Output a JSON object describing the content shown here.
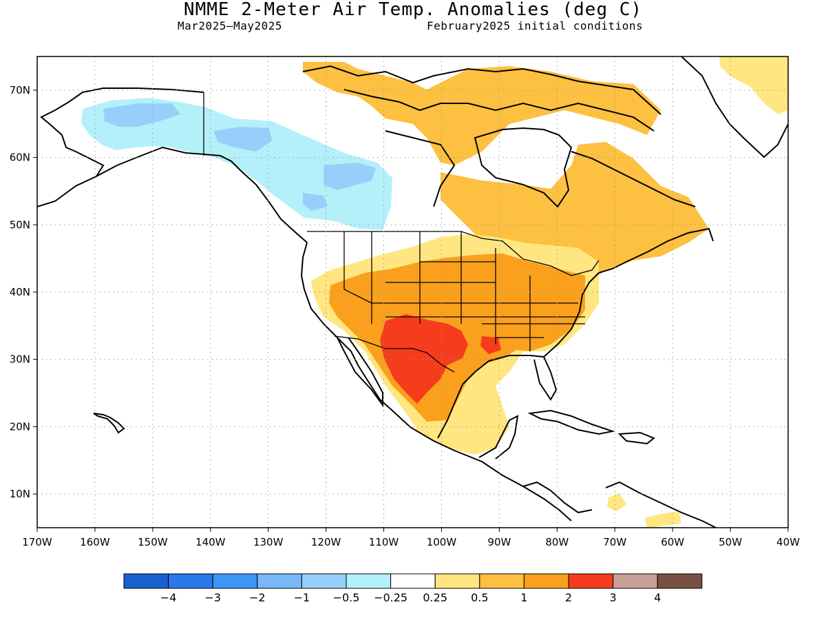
{
  "title": "NMME 2-Meter Air Temp. Anomalies (deg C)",
  "subtitle_left": "Mar2025–May2025",
  "subtitle_right": "February2025 initial conditions",
  "map": {
    "lon_range": [
      -170,
      -40
    ],
    "lat_range": [
      5,
      75
    ],
    "lon_ticks": [
      {
        "value": -170,
        "label": "170W"
      },
      {
        "value": -160,
        "label": "160W"
      },
      {
        "value": -150,
        "label": "150W"
      },
      {
        "value": -140,
        "label": "140W"
      },
      {
        "value": -130,
        "label": "130W"
      },
      {
        "value": -120,
        "label": "120W"
      },
      {
        "value": -110,
        "label": "110W"
      },
      {
        "value": -100,
        "label": "100W"
      },
      {
        "value": -90,
        "label": "90W"
      },
      {
        "value": -80,
        "label": "80W"
      },
      {
        "value": -70,
        "label": "70W"
      },
      {
        "value": -60,
        "label": "60W"
      },
      {
        "value": -50,
        "label": "50W"
      },
      {
        "value": -40,
        "label": "40W"
      }
    ],
    "lat_ticks": [
      {
        "value": 70,
        "label": "70N"
      },
      {
        "value": 60,
        "label": "60N"
      },
      {
        "value": 50,
        "label": "50N"
      },
      {
        "value": 40,
        "label": "40N"
      },
      {
        "value": 30,
        "label": "30N"
      },
      {
        "value": 20,
        "label": "20N"
      },
      {
        "value": 10,
        "label": "10N"
      }
    ],
    "grid": true
  },
  "colorbar": {
    "colors": [
      "#1a5fcf",
      "#2a78ec",
      "#3c96f4",
      "#78b8f7",
      "#96d0fa",
      "#b4f0fa",
      "#ffffff",
      "#ffe680",
      "#fec040",
      "#faa01c",
      "#f53c1c",
      "#c8a096",
      "#7a5044"
    ],
    "labels": [
      "−4",
      "−3",
      "−2",
      "−1",
      "−0.5",
      "−0.25",
      "0.25",
      "0.5",
      "1",
      "2",
      "3",
      "4"
    ]
  },
  "regions": [
    {
      "name": "alaska-cool-anomaly",
      "color": "#b4f0fa"
    },
    {
      "name": "alaska-cooler-core",
      "color": "#96d0fa"
    },
    {
      "name": "western-canada-cool-anomaly",
      "color": "#b4f0fa"
    },
    {
      "name": "canada-north-warm",
      "color": "#fec040"
    },
    {
      "name": "eastern-canada-warm",
      "color": "#fec040"
    },
    {
      "name": "us-warm-band",
      "color": "#ffe680"
    },
    {
      "name": "us-warm-core",
      "color": "#faa01c"
    },
    {
      "name": "southwest-hot-core",
      "color": "#f53c1c"
    },
    {
      "name": "greenland-warm",
      "color": "#ffe680"
    },
    {
      "name": "caribbean-warm",
      "color": "#ffe680"
    }
  ]
}
